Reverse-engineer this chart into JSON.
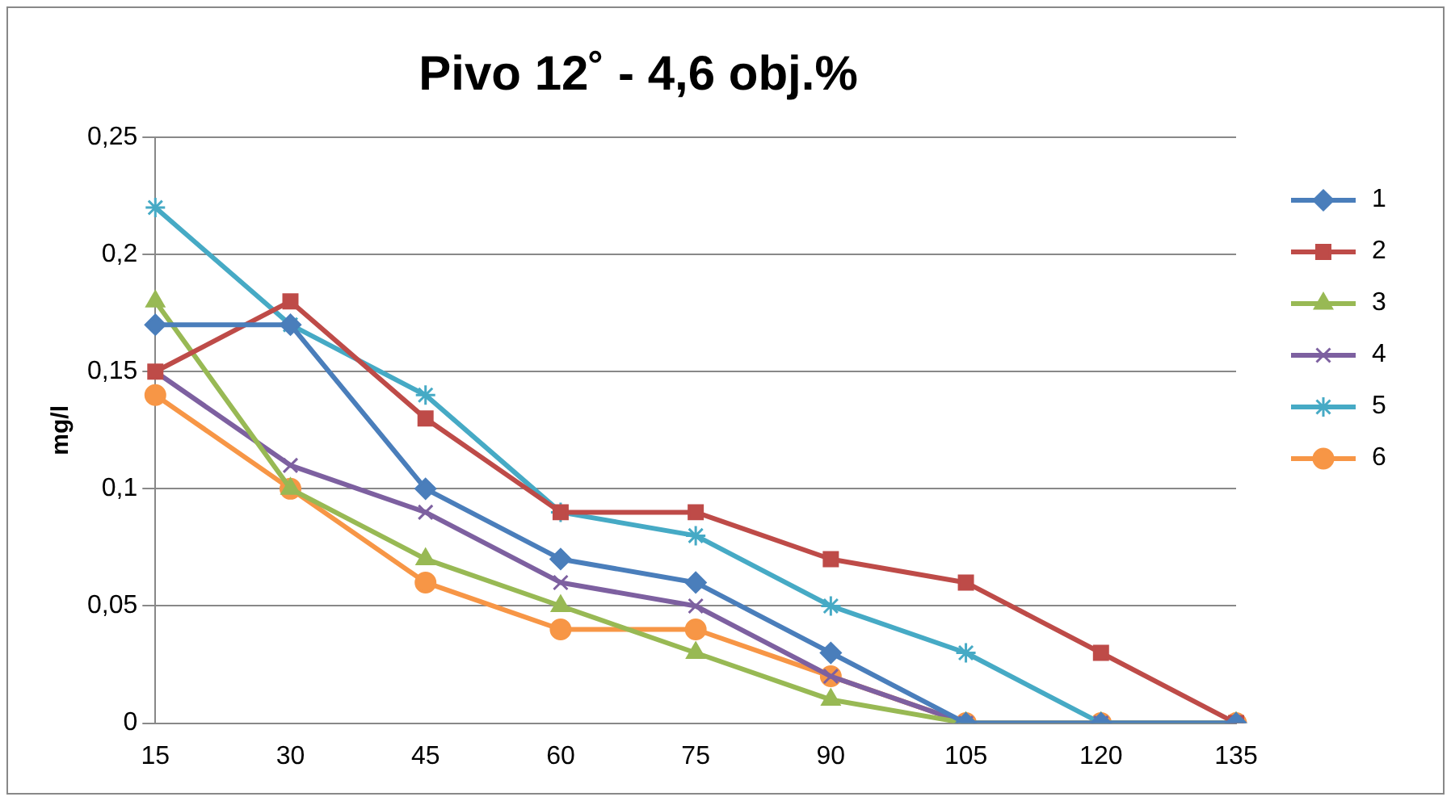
{
  "chart_data": {
    "type": "line",
    "title": "Pivo 12˚ - 4,6 obj.%",
    "ylabel": "mg/l",
    "categories": [
      "15",
      "30",
      "45",
      "60",
      "75",
      "90",
      "105",
      "120",
      "135"
    ],
    "series": [
      {
        "name": "1",
        "color": "#4a7ebb",
        "marker": "diamond",
        "values": [
          0.17,
          0.17,
          0.1,
          0.07,
          0.06,
          0.03,
          0,
          0,
          0
        ]
      },
      {
        "name": "2",
        "color": "#be4b48",
        "marker": "square",
        "values": [
          0.15,
          0.18,
          0.13,
          0.09,
          0.09,
          0.07,
          0.06,
          0.03,
          0
        ]
      },
      {
        "name": "3",
        "color": "#98b954",
        "marker": "triangle",
        "values": [
          0.18,
          0.1,
          0.07,
          0.05,
          0.03,
          0.01,
          0,
          0,
          0
        ]
      },
      {
        "name": "4",
        "color": "#7d60a0",
        "marker": "cross",
        "values": [
          0.15,
          0.11,
          0.09,
          0.06,
          0.05,
          0.02,
          0,
          0,
          0
        ]
      },
      {
        "name": "5",
        "color": "#46aac5",
        "marker": "cross",
        "values": [
          0.22,
          0.17,
          0.14,
          0.09,
          0.08,
          0.05,
          0.03,
          0,
          0
        ]
      },
      {
        "name": "6",
        "color": "#f79646",
        "marker": "circle",
        "values": [
          0.14,
          0.1,
          0.06,
          0.04,
          0.04,
          0.02,
          0,
          0,
          0
        ]
      }
    ],
    "ylim": [
      0,
      0.25
    ],
    "yticks": [
      0,
      {
        "value": 0.05,
        "label": "0,05"
      },
      {
        "value": 0.1,
        "label": "0,1"
      },
      {
        "value": 0.15,
        "label": "0,15"
      },
      {
        "value": 0.2,
        "label": "0,2"
      },
      {
        "value": 0.25,
        "label": "0,25"
      }
    ],
    "grid": "y",
    "legend": "right",
    "line_style": "solid"
  }
}
